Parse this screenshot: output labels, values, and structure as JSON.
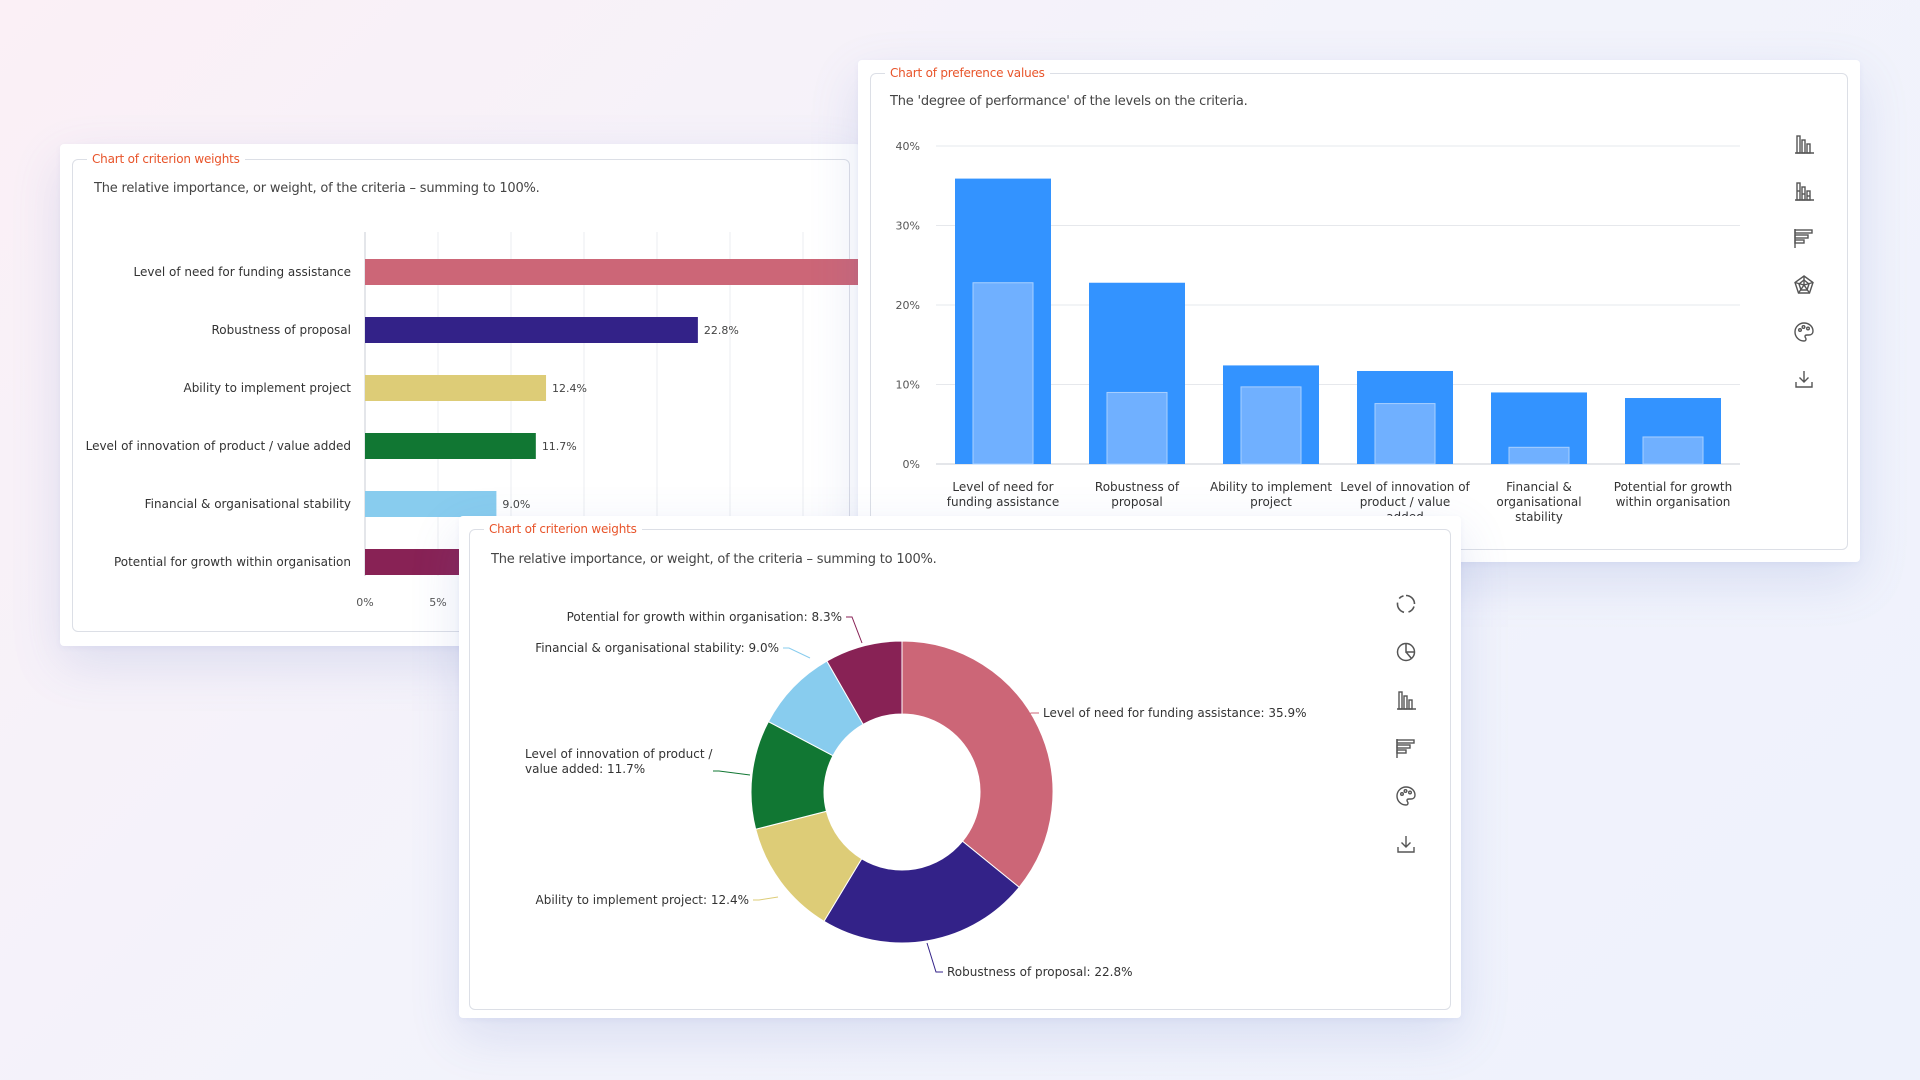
{
  "weights_bar_panel": {
    "title": "Chart of criterion weights",
    "description": "The relative importance, or weight, of the criteria – summing to 100%."
  },
  "preference_panel": {
    "title": "Chart of preference values",
    "description": "The 'degree of performance' of the levels on the criteria.",
    "toolbar": [
      "column-chart-icon",
      "stacked-column-chart-icon",
      "horizontal-bar-chart-icon",
      "radar-chart-icon",
      "palette-icon",
      "download-icon"
    ]
  },
  "weights_donut_panel": {
    "title": "Chart of criterion weights",
    "description": "The relative importance, or weight, of the criteria – summing to 100%.",
    "toolbar": [
      "donut-chart-icon",
      "pie-chart-icon",
      "column-chart-icon",
      "horizontal-bar-chart-icon",
      "palette-icon",
      "download-icon"
    ]
  },
  "chart_data": [
    {
      "type": "bar",
      "orientation": "horizontal",
      "title": "Chart of criterion weights",
      "categories": [
        "Level of need for funding assistance",
        "Robustness of proposal",
        "Ability to implement project",
        "Level of innovation of product / value added",
        "Financial & organisational stability",
        "Potential for growth within organisation"
      ],
      "values": [
        35.9,
        22.8,
        12.4,
        11.7,
        9.0,
        8.3
      ],
      "data_labels": [
        "",
        "22.8%",
        "12.4%",
        "11.7%",
        "9.0%",
        ""
      ],
      "colors": [
        "#cc6677",
        "#332288",
        "#ddcc77",
        "#117733",
        "#88ccee",
        "#882255"
      ],
      "xticks": [
        "0%",
        "5%"
      ],
      "grid": true
    },
    {
      "type": "bar",
      "title": "Chart of preference values",
      "categories": [
        "Level of need for funding assistance",
        "Robustness of proposal",
        "Ability to implement project",
        "Level of innovation of product / value added",
        "Financial & organisational stability",
        "Potential for growth within organisation"
      ],
      "category_lines": [
        [
          "Level of need for",
          "funding assistance"
        ],
        [
          "Robustness of",
          "proposal"
        ],
        [
          "Ability to implement",
          "project"
        ],
        [
          "Level of innovation of",
          "product / value",
          "added"
        ],
        [
          "Financial &",
          "organisational",
          "stability"
        ],
        [
          "Potential for growth",
          "within organisation"
        ]
      ],
      "series": [
        {
          "values": [
            35.9,
            22.8,
            12.4,
            11.7,
            9.0,
            8.3
          ],
          "color": "#3393ff"
        },
        {
          "values": [
            22.8,
            9.0,
            9.7,
            7.6,
            2.1,
            3.4
          ],
          "color": "#70b0ff"
        }
      ],
      "yticks": [
        "0%",
        "10%",
        "20%",
        "30%",
        "40%"
      ],
      "ylim": [
        0,
        40
      ],
      "grid": true
    },
    {
      "type": "pie",
      "title": "Chart of criterion weights",
      "donut": true,
      "labels": [
        "Level of need for funding assistance",
        "Robustness of proposal",
        "Ability to implement project",
        "Level of innovation of product / value added",
        "Financial & organisational stability",
        "Potential for growth within organisation"
      ],
      "values": [
        35.9,
        22.8,
        12.4,
        11.7,
        9.0,
        8.3
      ],
      "colors": [
        "#cc6677",
        "#332288",
        "#ddcc77",
        "#117733",
        "#88ccee",
        "#882255"
      ],
      "slice_labels": [
        [
          "Level of need for funding assistance: 35.9%"
        ],
        [
          "Robustness of proposal: 22.8%"
        ],
        [
          "Ability to implement project: 12.4%"
        ],
        [
          "Level of innovation of product /",
          "value added: 11.7%"
        ],
        [
          "Financial & organisational stability: 9.0%"
        ],
        [
          "Potential for growth within organisation: 8.3%"
        ]
      ]
    }
  ]
}
